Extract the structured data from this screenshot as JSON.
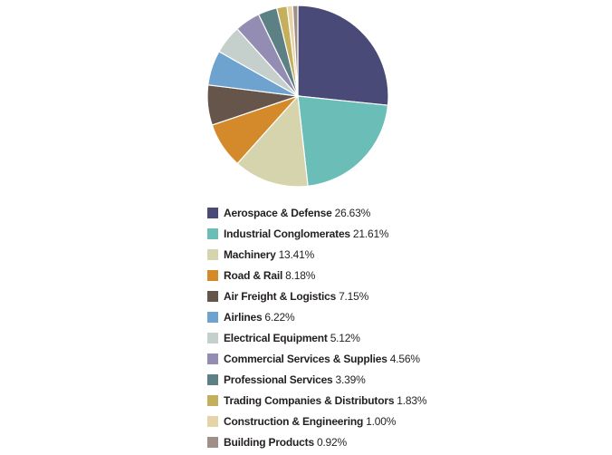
{
  "chart_data": {
    "type": "pie",
    "title": "",
    "legend_position": "bottom",
    "slices": [
      {
        "label": "Aerospace & Defense",
        "value": 26.63,
        "display": "26.63%",
        "color": "#4a4a78"
      },
      {
        "label": "Industrial Conglomerates",
        "value": 21.61,
        "display": "21.61%",
        "color": "#6bbdb7"
      },
      {
        "label": "Machinery",
        "value": 13.41,
        "display": "13.41%",
        "color": "#d6d4ac"
      },
      {
        "label": "Road & Rail",
        "value": 8.18,
        "display": "8.18%",
        "color": "#d48a2a"
      },
      {
        "label": "Air Freight & Logistics",
        "value": 7.15,
        "display": "7.15%",
        "color": "#66554a"
      },
      {
        "label": "Airlines",
        "value": 6.22,
        "display": "6.22%",
        "color": "#6ea3cf"
      },
      {
        "label": "Electrical Equipment",
        "value": 5.12,
        "display": "5.12%",
        "color": "#c5cfcc"
      },
      {
        "label": "Commercial Services & Supplies",
        "value": 4.56,
        "display": "4.56%",
        "color": "#938db3"
      },
      {
        "label": "Professional Services",
        "value": 3.39,
        "display": "3.39%",
        "color": "#5c8084"
      },
      {
        "label": "Trading Companies & Distributors",
        "value": 1.83,
        "display": "1.83%",
        "color": "#c4af5c"
      },
      {
        "label": "Construction & Engineering",
        "value": 1.0,
        "display": "1.00%",
        "color": "#e6d3a8"
      },
      {
        "label": "Building Products",
        "value": 0.92,
        "display": "0.92%",
        "color": "#a08e88"
      }
    ]
  }
}
